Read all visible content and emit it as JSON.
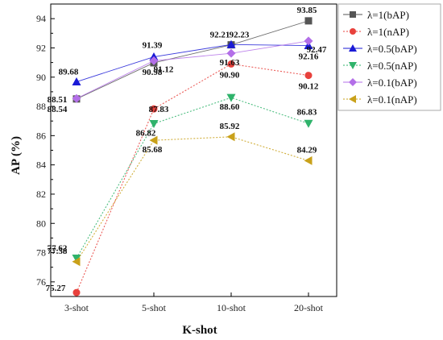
{
  "chart_data": {
    "type": "line",
    "title": "",
    "xlabel": "K-shot",
    "ylabel": "AP (%)",
    "categories": [
      "3-shot",
      "5-shot",
      "10-shot",
      "20-shot"
    ],
    "ylim": [
      75,
      95
    ],
    "yticks": [
      76,
      78,
      80,
      82,
      84,
      86,
      88,
      90,
      92,
      94
    ],
    "grid": false,
    "legend_position": "top-right",
    "series": [
      {
        "name": "λ=1(bAP)",
        "values": [
          88.51,
          90.98,
          92.21,
          93.85
        ],
        "color": "#555555",
        "marker": "square",
        "line": "solid"
      },
      {
        "name": "λ=1(nAP)",
        "values": [
          75.27,
          87.83,
          90.9,
          90.12
        ],
        "color": "#e8413c",
        "marker": "circle",
        "line": "dotted"
      },
      {
        "name": "λ=0.5(bAP)",
        "values": [
          89.68,
          91.39,
          92.23,
          92.16
        ],
        "color": "#1a1ad6",
        "marker": "triangle-up",
        "line": "solid"
      },
      {
        "name": "λ=0.5(nAP)",
        "values": [
          77.62,
          86.82,
          88.6,
          86.83
        ],
        "color": "#2fb36b",
        "marker": "triangle-down",
        "line": "dotted"
      },
      {
        "name": "λ=0.1(bAP)",
        "values": [
          88.54,
          91.12,
          91.63,
          92.47
        ],
        "color": "#b36fe8",
        "marker": "diamond",
        "line": "solid"
      },
      {
        "name": "λ=0.1(nAP)",
        "values": [
          77.38,
          85.68,
          85.92,
          84.29
        ],
        "color": "#c9a11a",
        "marker": "triangle-left",
        "line": "dotted"
      }
    ]
  }
}
